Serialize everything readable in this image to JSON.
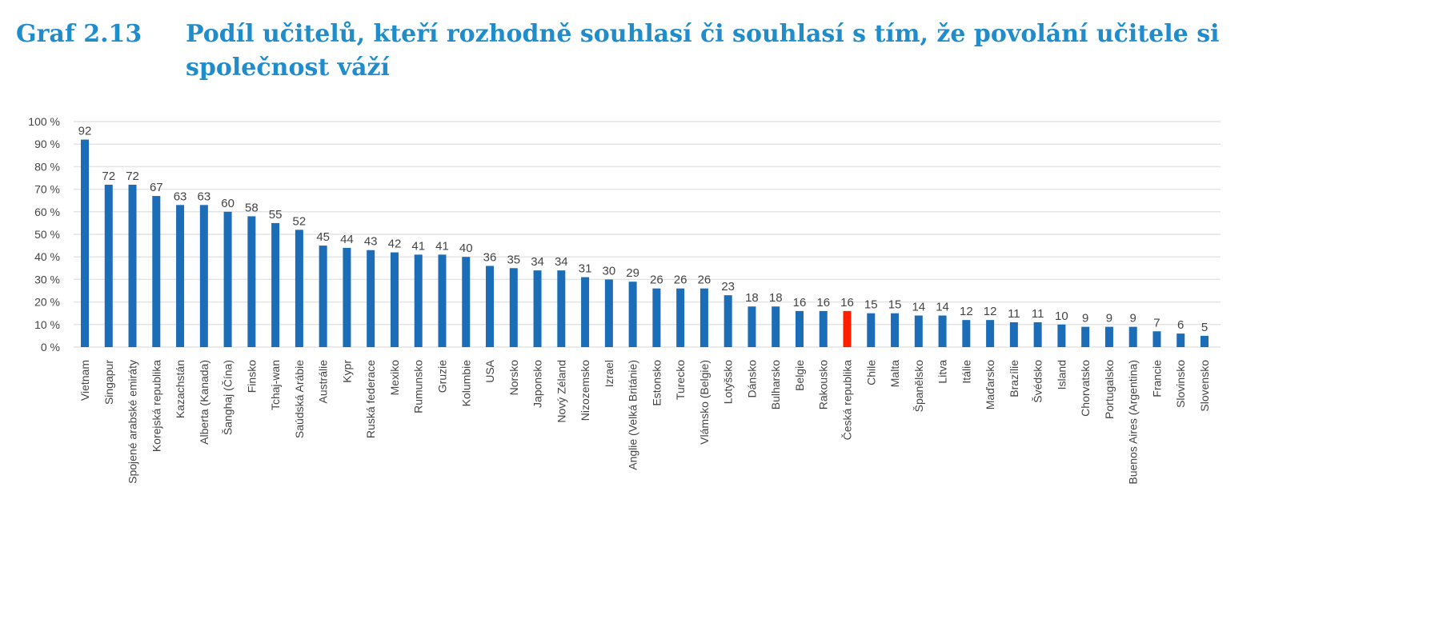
{
  "title_number": "Graf 2.13",
  "title_text": "Podíl učitelů, kteří rozhodně souhlasí či souhlasí s tím, že povolání učitele si společnost váží",
  "colors": {
    "bar": "#1b6db8",
    "highlight": "#ff2000",
    "grid": "#e4e4e4",
    "title": "#1f8ccc"
  },
  "chart_data": {
    "type": "bar",
    "title": "Podíl učitelů, kteří rozhodně souhlasí či souhlasí s tím, že povolání učitele si společnost váží",
    "xlabel": "",
    "ylabel": "",
    "ylim": [
      0,
      100
    ],
    "yticks": [
      "0 %",
      "10 %",
      "20 %",
      "30 %",
      "40 %",
      "50 %",
      "60 %",
      "70 %",
      "80 %",
      "90 %",
      "100 %"
    ],
    "grid": true,
    "highlight": "Česká republika",
    "categories": [
      "Vietnam",
      "Singapur",
      "Spojené arabské emiráty",
      "Korejská republika",
      "Kazachstán",
      "Alberta (Kanada)",
      "Šanghaj (Čína)",
      "Finsko",
      "Tchaj-wan",
      "Saúdská Arábie",
      "Austrálie",
      "Kypr",
      "Ruská federace",
      "Mexiko",
      "Rumunsko",
      "Gruzie",
      "Kolumbie",
      "USA",
      "Norsko",
      "Japonsko",
      "Nový Zéland",
      "Nizozemsko",
      "Izrael",
      "Anglie (Velká Británie)",
      "Estonsko",
      "Turecko",
      "Vlámsko (Belgie)",
      "Lotyšsko",
      "Dánsko",
      "Bulharsko",
      "Belgie",
      "Rakousko",
      "Česká republika",
      "Chile",
      "Malta",
      "Španělsko",
      "Litva",
      "Itálie",
      "Maďarsko",
      "Brazílie",
      "Švédsko",
      "Island",
      "Chorvatsko",
      "Portugalsko",
      "Buenos Aires (Argentina)",
      "Francie",
      "Slovinsko",
      "Slovensko"
    ],
    "values": [
      92,
      72,
      72,
      67,
      63,
      63,
      60,
      58,
      55,
      52,
      45,
      44,
      43,
      42,
      41,
      41,
      40,
      36,
      35,
      34,
      34,
      31,
      30,
      29,
      26,
      26,
      26,
      23,
      18,
      18,
      16,
      16,
      16,
      15,
      15,
      14,
      14,
      12,
      12,
      11,
      11,
      10,
      9,
      9,
      9,
      7,
      6,
      5
    ]
  }
}
